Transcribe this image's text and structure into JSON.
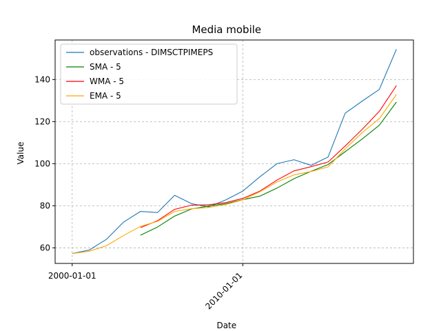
{
  "chart_data": {
    "type": "line",
    "title": "Media mobile",
    "xlabel": "Date",
    "ylabel": "Value",
    "x_axis": "date",
    "xlim": [
      "1999-01-01",
      "2020-01-01"
    ],
    "ylim": [
      52.6,
      158.8
    ],
    "x_ticks": [
      "2000-01-01",
      "2010-01-01"
    ],
    "y_ticks": [
      60,
      80,
      100,
      120,
      140
    ],
    "grid": true,
    "legend_position": "upper left",
    "x": [
      "2000-01-01",
      "2001-01-01",
      "2002-01-01",
      "2003-01-01",
      "2004-01-01",
      "2005-01-01",
      "2006-01-01",
      "2007-01-01",
      "2008-01-01",
      "2009-01-01",
      "2010-01-01",
      "2011-01-01",
      "2012-01-01",
      "2013-01-01",
      "2014-01-01",
      "2015-01-01",
      "2016-01-01",
      "2017-01-01",
      "2018-01-01",
      "2019-01-01"
    ],
    "series": [
      {
        "name": "observations - DIMSCTPIMEPS",
        "color": "#1f77b4",
        "values": [
          57.3,
          59.0,
          64.0,
          72.2,
          77.3,
          76.8,
          85.0,
          81.0,
          79.5,
          82.8,
          87.0,
          93.8,
          100.0,
          101.9,
          99.2,
          103.2,
          124.0,
          129.8,
          135.3,
          154.4
        ]
      },
      {
        "name": "SMA - 5",
        "color": "#008000",
        "values": [
          null,
          null,
          null,
          null,
          66.0,
          69.9,
          75.1,
          78.5,
          79.9,
          81.0,
          82.9,
          84.6,
          88.4,
          92.9,
          96.4,
          99.6,
          105.7,
          111.8,
          118.3,
          129.3
        ]
      },
      {
        "name": "WMA - 5",
        "color": "#ff0000",
        "values": [
          null,
          null,
          null,
          null,
          69.6,
          72.9,
          78.3,
          80.3,
          80.5,
          81.5,
          83.5,
          87.0,
          92.2,
          96.6,
          98.6,
          100.8,
          108.4,
          116.4,
          124.9,
          137.1
        ]
      },
      {
        "name": "EMA - 5",
        "color": "#ffa500",
        "values": [
          57.3,
          58.4,
          61.0,
          65.8,
          70.2,
          72.6,
          77.3,
          78.6,
          79.2,
          80.6,
          82.8,
          86.7,
          91.3,
          94.7,
          96.3,
          98.5,
          107.0,
          114.8,
          121.4,
          132.9
        ]
      }
    ]
  }
}
